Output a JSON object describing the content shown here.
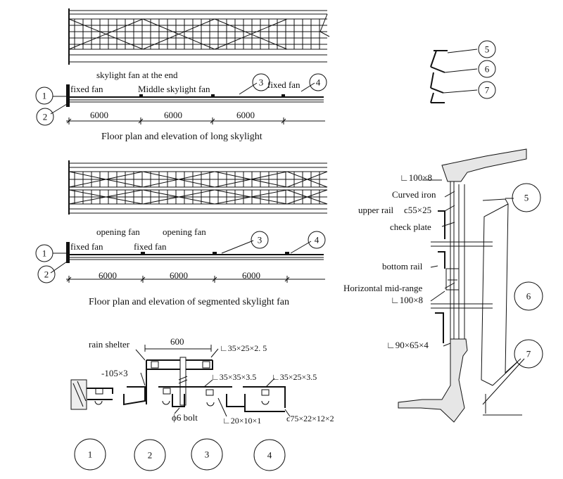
{
  "long_plan": {
    "label_end": "skylight fan at the end",
    "label_fixed_left": "fixed fan",
    "label_middle": "Middle skylight fan",
    "label_fixed_right": "fixed fan",
    "dims": [
      "6000",
      "6000",
      "6000"
    ],
    "caption": "Floor plan and elevation of long skylight",
    "markers": [
      "1",
      "2",
      "3",
      "4"
    ]
  },
  "seg_plan": {
    "label_opening_1": "opening fan",
    "label_opening_2": "opening fan",
    "label_fixed_1": "fixed fan",
    "label_fixed_2": "fixed fan",
    "dims": [
      "6000",
      "6000",
      "6000"
    ],
    "caption": "Floor plan and elevation of segmented skylight fan",
    "markers": [
      "1",
      "2",
      "3",
      "4"
    ]
  },
  "detail_bottom": {
    "rain_shelter": "rain shelter",
    "dim_600": "600",
    "flat_bar": "-105×3",
    "angle_a": "∟35×25×2. 5",
    "angle_b": "∟35×35×3.5",
    "angle_c": "∟35×25×3.5",
    "bolt": "ϕ6 bolt",
    "angle_d": "∟20×10×1",
    "channel": "ϲ75×22×12×2",
    "circles": [
      "1",
      "2",
      "3",
      "4"
    ]
  },
  "key_small": {
    "circles": [
      "5",
      "6",
      "7"
    ]
  },
  "section": {
    "angle_top": "∟100×8",
    "curved_iron": "Curved iron",
    "upper_rail": "upper rail",
    "upper_rail_size": "ϲ55×25",
    "check_plate": "check plate",
    "bottom_rail": "bottom rail",
    "mid_range": "Horizontal mid-range",
    "angle_mid": "∟100×8",
    "angle_bottom": "∟90×65×4",
    "circles": [
      "5",
      "6",
      "7"
    ]
  }
}
